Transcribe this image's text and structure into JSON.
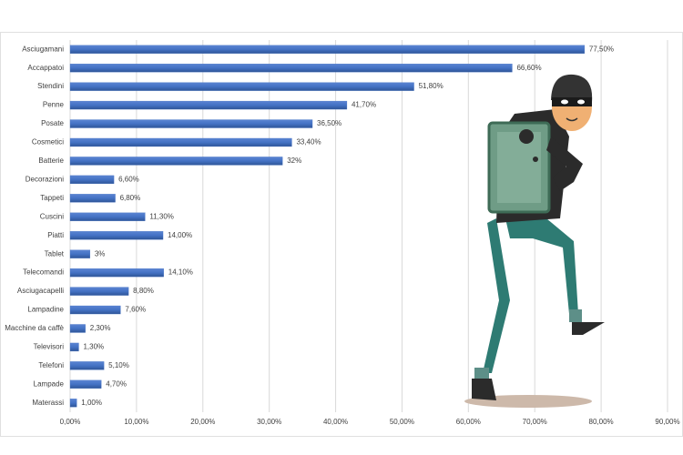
{
  "chart_data": {
    "type": "hbar",
    "categories": [
      "Asciugamani",
      "Accappatoi",
      "Stendini",
      "Penne",
      "Posate",
      "Cosmetici",
      "Batterie",
      "Decorazioni",
      "Tappeti",
      "Cuscini",
      "Piatti",
      "Tablet",
      "Telecomandi",
      "Asciugacapelli",
      "Lampadine",
      "Macchine da caffè",
      "Televisori",
      "Telefoni",
      "Lampade",
      "Materassi"
    ],
    "values": [
      77.5,
      66.6,
      51.8,
      41.7,
      36.5,
      33.4,
      32,
      6.6,
      6.8,
      11.3,
      14.0,
      3,
      14.1,
      8.8,
      7.6,
      2.3,
      1.3,
      5.1,
      4.7,
      1.0
    ],
    "value_labels": [
      "77,50%",
      "66,60%",
      "51,80%",
      "41,70%",
      "36,50%",
      "33,40%",
      "32%",
      "6,60%",
      "6,80%",
      "11,30%",
      "14,00%",
      "3%",
      "14,10%",
      "8,80%",
      "7,60%",
      "2,30%",
      "1,30%",
      "5,10%",
      "4,70%",
      "1,00%"
    ],
    "color": "#4472c4",
    "xlim": [
      0,
      90
    ],
    "xticks": [
      {
        "value": 0,
        "label": "0,00%"
      },
      {
        "value": 10,
        "label": "10,00%"
      },
      {
        "value": 20,
        "label": "20,00%"
      },
      {
        "value": 30,
        "label": "30,00%"
      },
      {
        "value": 40,
        "label": "40,00%"
      },
      {
        "value": 50,
        "label": "50,00%"
      },
      {
        "value": 60,
        "label": "60,00%"
      },
      {
        "value": 70,
        "label": "70,00%"
      },
      {
        "value": 80,
        "label": "80,00%"
      },
      {
        "value": 90,
        "label": "90,00%"
      }
    ],
    "grid": true
  }
}
